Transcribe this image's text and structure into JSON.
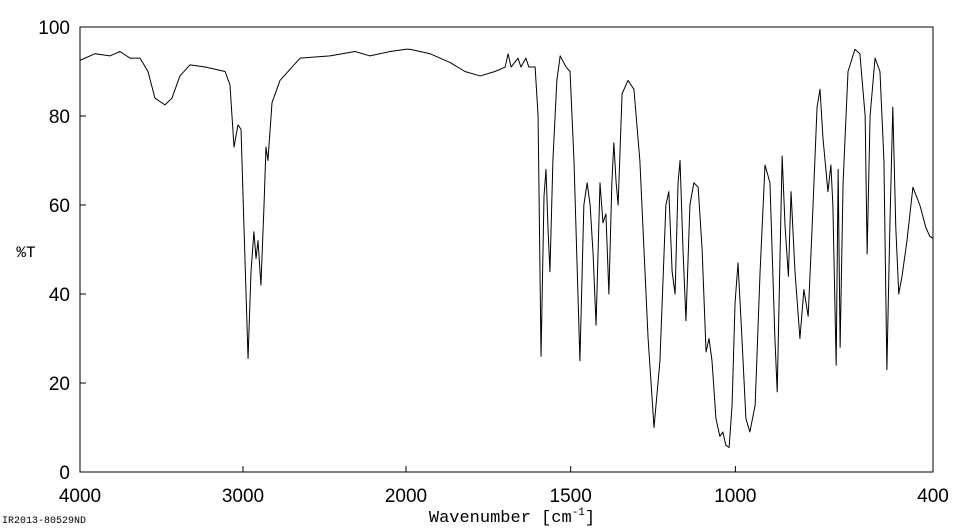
{
  "chart_data": {
    "type": "line",
    "xlabel": "Wavenumber [cm",
    "xlabel_sup": "-1",
    "xlabel_end": "]",
    "ylabel": "%T",
    "footnote": "IR2013-80529ND",
    "xlim": [
      4000,
      400
    ],
    "x_scale_break": 2000,
    "ylim": [
      0,
      100
    ],
    "xticks": [
      4000,
      3000,
      2000,
      1500,
      1000,
      400
    ],
    "yticks": [
      0,
      20,
      40,
      60,
      80,
      100
    ],
    "grid": false,
    "color": "#000000",
    "x": [
      4000,
      3908,
      3816,
      3755,
      3693,
      3632,
      3583,
      3540,
      3479,
      3436,
      3387,
      3325,
      3233,
      3110,
      3080,
      3055,
      3031,
      3012,
      2994,
      2969,
      2951,
      2933,
      2920,
      2908,
      2890,
      2871,
      2859,
      2847,
      2822,
      2773,
      2650,
      2466,
      2313,
      2221,
      2098,
      2000,
      1988,
      1927,
      1866,
      1821,
      1775,
      1730,
      1699,
      1690,
      1681,
      1660,
      1651,
      1636,
      1627,
      1608,
      1599,
      1590,
      1581,
      1575,
      1569,
      1563,
      1554,
      1542,
      1532,
      1514,
      1502,
      1490,
      1472,
      1460,
      1450,
      1441,
      1432,
      1423,
      1411,
      1402,
      1393,
      1384,
      1375,
      1369,
      1362,
      1356,
      1344,
      1326,
      1308,
      1290,
      1265,
      1247,
      1229,
      1211,
      1202,
      1192,
      1183,
      1174,
      1168,
      1159,
      1150,
      1138,
      1126,
      1113,
      1101,
      1089,
      1080,
      1071,
      1059,
      1047,
      1038,
      1029,
      1019,
      1010,
      1001,
      992,
      980,
      968,
      956,
      940,
      925,
      910,
      895,
      880,
      873,
      864,
      858,
      849,
      839,
      831,
      819,
      804,
      792,
      779,
      767,
      752,
      743,
      734,
      719,
      710,
      704,
      694,
      688,
      682,
      673,
      658,
      637,
      622,
      606,
      600,
      591,
      576,
      561,
      549,
      540,
      531,
      522,
      513,
      504,
      494,
      479,
      461,
      440,
      422,
      410,
      400
    ],
    "values": [
      92.5,
      94,
      93.5,
      94.5,
      93,
      93,
      90,
      84,
      82.5,
      84,
      89,
      91.5,
      91,
      90,
      87,
      73,
      78,
      77,
      55,
      25.5,
      45,
      54,
      48,
      52,
      42,
      60,
      73,
      70,
      83,
      88,
      93,
      93.5,
      94.5,
      93.5,
      94.5,
      95,
      95,
      94,
      92,
      90,
      89,
      90,
      91,
      94,
      91,
      93,
      91,
      93,
      91,
      91,
      80,
      26,
      62,
      68,
      55,
      45,
      70,
      88,
      93.5,
      91,
      90,
      70,
      25,
      60,
      65,
      60,
      49,
      33,
      65,
      56,
      58,
      40,
      65,
      74,
      65,
      60,
      85,
      88,
      86,
      70,
      30,
      10,
      25,
      60,
      63,
      45,
      40,
      65,
      70,
      50,
      34,
      60,
      65,
      64,
      50,
      27,
      30,
      25,
      12,
      8,
      9,
      6,
      5.5,
      15,
      38,
      47,
      30,
      12,
      9,
      15,
      45,
      69,
      65,
      30,
      18,
      50,
      71,
      55,
      44,
      63,
      45,
      30,
      41,
      35,
      55,
      82,
      86,
      75,
      63,
      69,
      60,
      24,
      68,
      28,
      65,
      90,
      95,
      94,
      80,
      49,
      80,
      93,
      90,
      70,
      23,
      55,
      82,
      55,
      40,
      44,
      52,
      64,
      60,
      55,
      53,
      52.5
    ]
  }
}
